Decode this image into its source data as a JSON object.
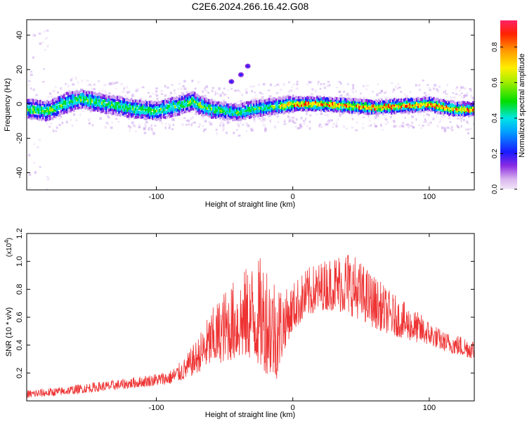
{
  "title": "C2E6.2024.266.16.42.G08",
  "chart_data": [
    {
      "type": "heatmap",
      "xlabel": "Height of straight line (km)",
      "ylabel": "Frequency (Hz)",
      "xlim": [
        -195,
        133
      ],
      "ylim": [
        -50,
        49
      ],
      "xticks": [
        -100,
        0,
        100
      ],
      "yticks": [
        -40,
        -20,
        0,
        20,
        40
      ],
      "ridge_center": [
        [
          -195,
          -3
        ],
        [
          -180,
          -4
        ],
        [
          -165,
          1
        ],
        [
          -155,
          3
        ],
        [
          -145,
          1
        ],
        [
          -130,
          -1
        ],
        [
          -115,
          -3
        ],
        [
          -100,
          -4
        ],
        [
          -90,
          -2
        ],
        [
          -80,
          0
        ],
        [
          -74,
          2
        ],
        [
          -68,
          -1
        ],
        [
          -60,
          -3
        ],
        [
          -50,
          -4
        ],
        [
          -40,
          -5
        ],
        [
          -30,
          -3
        ],
        [
          -20,
          -2
        ],
        [
          -10,
          -1
        ],
        [
          0,
          0
        ],
        [
          20,
          0
        ],
        [
          40,
          -1
        ],
        [
          60,
          -2
        ],
        [
          80,
          -1
        ],
        [
          100,
          0
        ],
        [
          110,
          -2
        ],
        [
          120,
          -3
        ],
        [
          133,
          -3
        ]
      ],
      "isolated_features": [
        {
          "x": -45,
          "y": 13
        },
        {
          "x": -38,
          "y": 17
        },
        {
          "x": -33,
          "y": 22
        }
      ],
      "colorbar": {
        "label": "Normalized spectral amplitude",
        "range": [
          0.0,
          0.95
        ],
        "ticks": [
          "0.0",
          "0.2",
          "0.4",
          "0.6",
          "0.8"
        ]
      }
    },
    {
      "type": "line",
      "xlabel": "Height of straight line (km)",
      "ylabel": "SNR (10 * v/v)",
      "multiplier": "(x10",
      "multiplier_exp": "4",
      "xlim": [
        -195,
        133
      ],
      "ylim": [
        0,
        1.2
      ],
      "xticks": [
        -100,
        0,
        100
      ],
      "yticks": [
        "0.2",
        "0.4",
        "0.6",
        "0.8",
        "1.0",
        "1.2"
      ],
      "color": "#ee3333",
      "envelope": [
        [
          -195,
          0.02,
          0.08
        ],
        [
          -170,
          0.04,
          0.1
        ],
        [
          -150,
          0.06,
          0.13
        ],
        [
          -130,
          0.08,
          0.15
        ],
        [
          -110,
          0.1,
          0.18
        ],
        [
          -90,
          0.12,
          0.22
        ],
        [
          -80,
          0.15,
          0.3
        ],
        [
          -70,
          0.2,
          0.45
        ],
        [
          -60,
          0.25,
          0.65
        ],
        [
          -50,
          0.28,
          0.8
        ],
        [
          -40,
          0.3,
          0.9
        ],
        [
          -30,
          0.3,
          1.0
        ],
        [
          -20,
          0.2,
          1.05
        ],
        [
          -12,
          0.15,
          0.9
        ],
        [
          -5,
          0.4,
          0.8
        ],
        [
          0,
          0.5,
          0.85
        ],
        [
          10,
          0.6,
          0.95
        ],
        [
          20,
          0.65,
          1.0
        ],
        [
          30,
          0.65,
          1.05
        ],
        [
          40,
          0.62,
          1.1
        ],
        [
          50,
          0.58,
          1.0
        ],
        [
          60,
          0.52,
          0.9
        ],
        [
          70,
          0.48,
          0.8
        ],
        [
          80,
          0.45,
          0.72
        ],
        [
          90,
          0.42,
          0.65
        ],
        [
          100,
          0.4,
          0.58
        ],
        [
          110,
          0.36,
          0.5
        ],
        [
          120,
          0.33,
          0.48
        ],
        [
          133,
          0.3,
          0.45
        ]
      ]
    }
  ]
}
